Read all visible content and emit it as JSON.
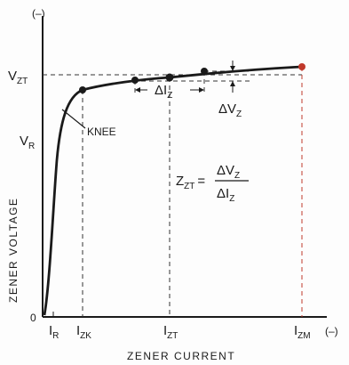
{
  "diagram": {
    "x_axis_title": "ZENER CURRENT",
    "y_axis_title": "ZENER VOLTAGE",
    "origin_label": "0",
    "y_unit_marker": "(–)",
    "x_unit_marker": "(–)",
    "knee_label": "KNEE",
    "vzt": {
      "main": "V",
      "sub": "ZT"
    },
    "vr": {
      "main": "V",
      "sub": "R"
    },
    "ir": {
      "main": "I",
      "sub": "R"
    },
    "izk": {
      "main": "I",
      "sub": "ZK"
    },
    "izt": {
      "main": "I",
      "sub": "ZT"
    },
    "izm": {
      "main": "I",
      "sub": "ZM"
    },
    "delta_iz": {
      "main": "ΔI",
      "sub": "Z"
    },
    "delta_vz": {
      "main": "ΔV",
      "sub": "Z"
    },
    "formula": {
      "lhs_main": "Z",
      "lhs_sub": "ZT",
      "equals": "=",
      "num_main": "ΔV",
      "num_sub": "Z",
      "den_main": "ΔI",
      "den_sub": "Z"
    },
    "colors": {
      "ink": "#1a1a1a",
      "izm_line": "#c0392b",
      "background": "#fdfdfd"
    }
  }
}
